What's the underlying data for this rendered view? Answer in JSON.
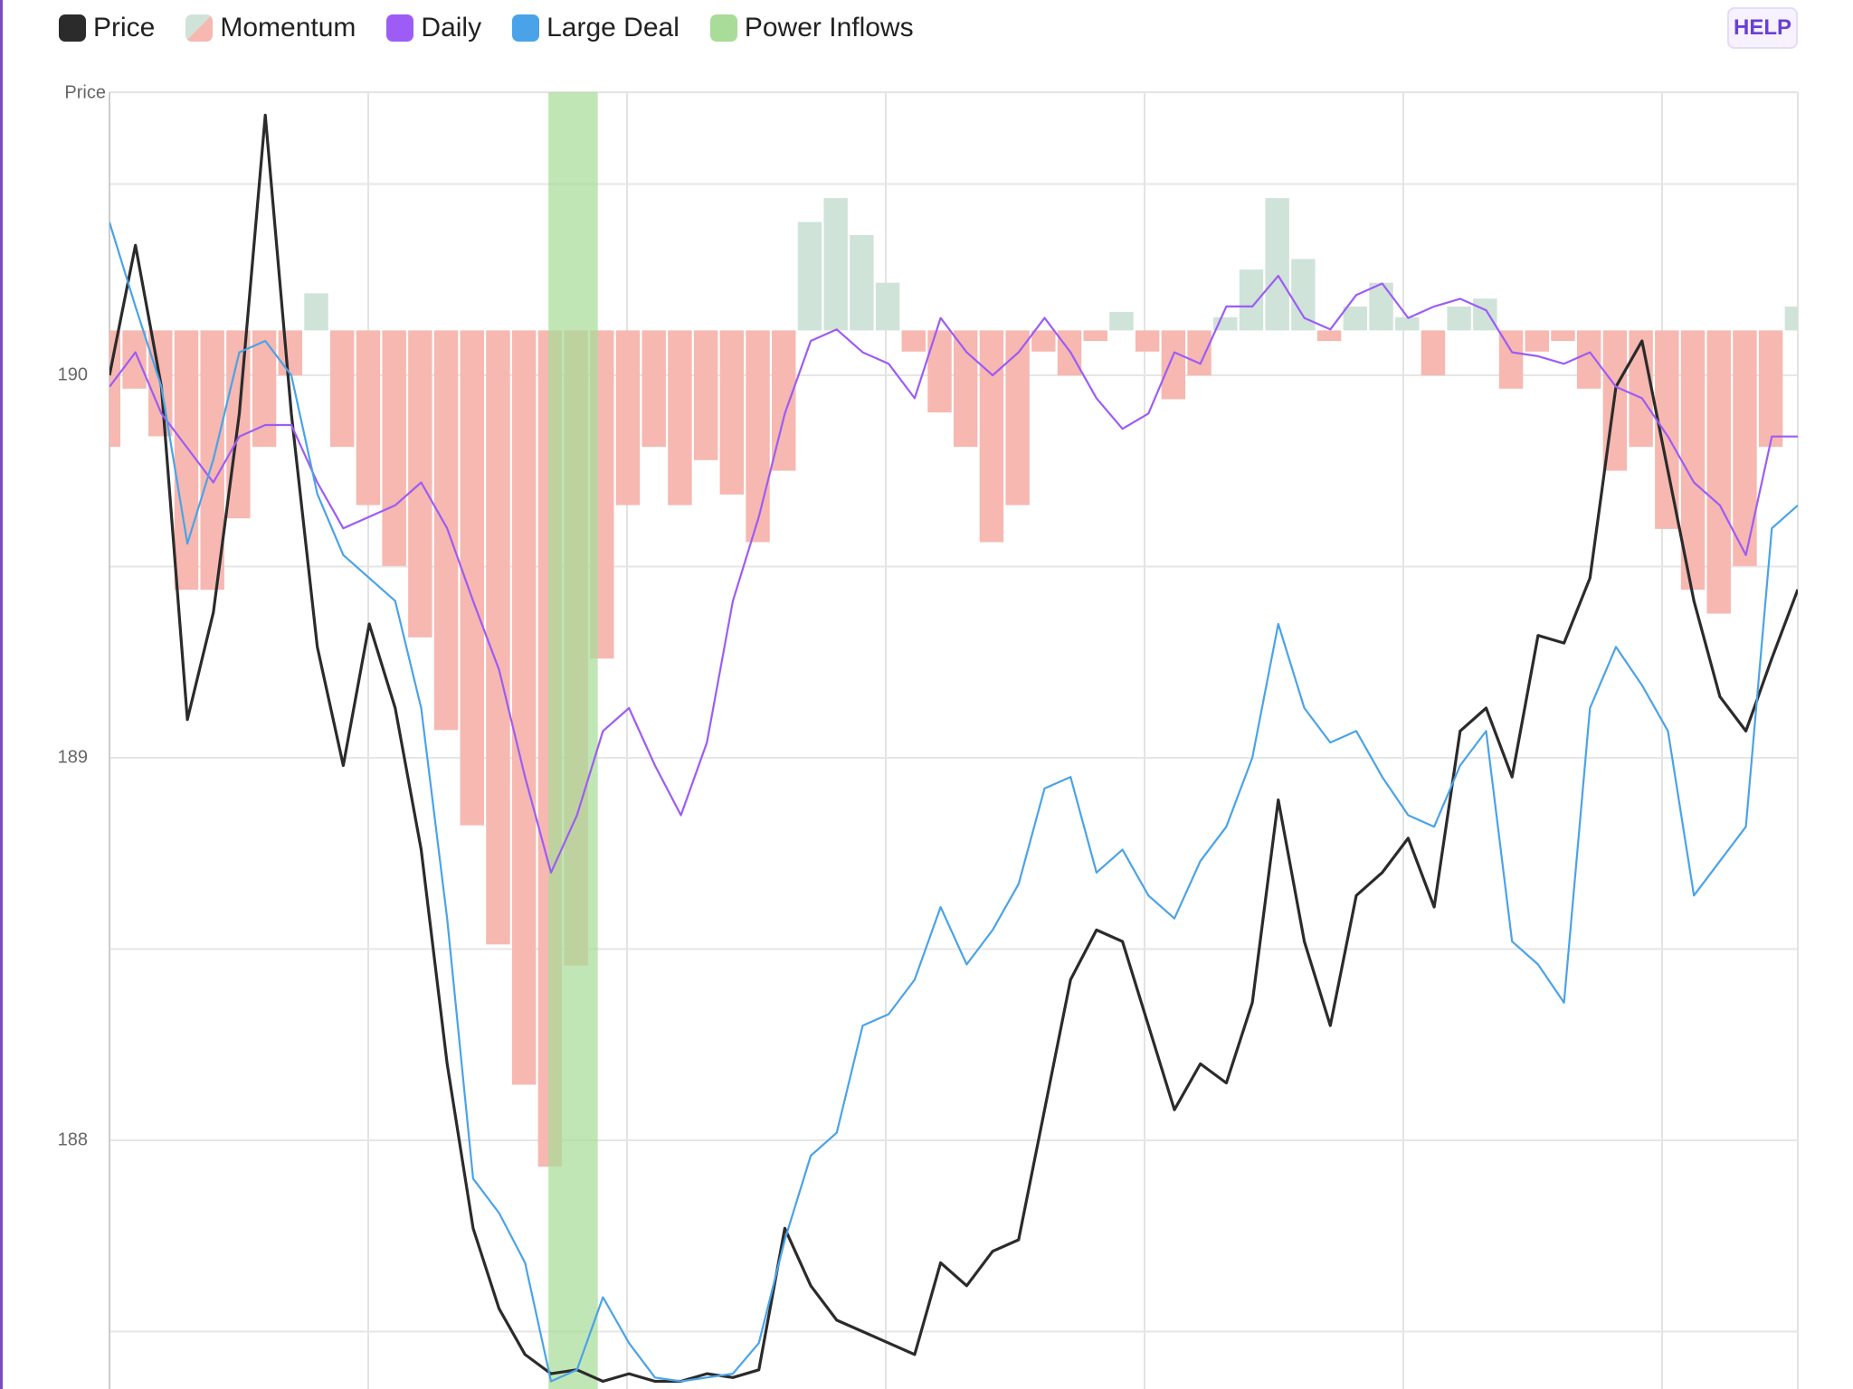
{
  "chart_data": {
    "type": "line",
    "help_button": "HELP",
    "y_label": "Price",
    "x": [
      0,
      1,
      2,
      3,
      4,
      5,
      6,
      7,
      8,
      9,
      10,
      11,
      12,
      13,
      14,
      15,
      16,
      17,
      18,
      19,
      20,
      21,
      22,
      23,
      24,
      25,
      26,
      27,
      28,
      29,
      30,
      31,
      32,
      33,
      34,
      35,
      36,
      37,
      38,
      39,
      40,
      41,
      42,
      43,
      44,
      45,
      46,
      47,
      48,
      49,
      50,
      51,
      52,
      53,
      54,
      55,
      56,
      57,
      58,
      59,
      60,
      61,
      62,
      63,
      64,
      65
    ],
    "xlim": [
      0,
      65
    ],
    "ylim": [
      187.35,
      190.74
    ],
    "yticks": [
      188,
      189,
      190
    ],
    "minor_yticks": [
      187.5,
      188.5,
      189.5,
      190.5
    ],
    "grid": true,
    "y2lim": [
      -4,
      0.9
    ],
    "series": [
      {
        "name": "Price",
        "type": "line",
        "color": "#2b2b2b",
        "values": [
          190.0,
          190.34,
          189.97,
          189.1,
          189.38,
          189.9,
          190.68,
          189.9,
          189.29,
          188.98,
          189.35,
          189.13,
          188.76,
          188.2,
          187.77,
          187.56,
          187.44,
          187.39,
          187.4,
          187.37,
          187.39,
          187.37,
          187.37,
          187.39,
          187.38,
          187.4,
          187.77,
          187.62,
          187.53,
          187.5,
          187.47,
          187.44,
          187.68,
          187.62,
          187.71,
          187.74,
          188.08,
          188.42,
          188.55,
          188.52,
          188.3,
          188.08,
          188.2,
          188.15,
          188.36,
          188.89,
          188.52,
          188.3,
          188.64,
          188.7,
          188.79,
          188.61,
          189.07,
          189.13,
          188.95,
          189.32,
          189.3,
          189.47,
          189.97,
          190.09,
          189.75,
          189.41,
          189.16,
          189.07,
          189.26,
          189.44
        ]
      },
      {
        "name": "Momentum",
        "type": "bar",
        "axis": "y2",
        "color": "#f6b8b0",
        "color_positive": "#cfe3d9",
        "values": [
          -0.44,
          -0.22,
          -0.4,
          -0.98,
          -0.98,
          -0.71,
          -0.44,
          -0.17,
          0.14,
          -0.44,
          -0.66,
          -0.89,
          -1.16,
          -1.51,
          -1.87,
          -2.32,
          -2.85,
          -3.16,
          -2.4,
          -1.24,
          -0.66,
          -0.44,
          -0.66,
          -0.49,
          -0.62,
          -0.8,
          -0.53,
          0.41,
          0.5,
          0.36,
          0.18,
          -0.08,
          -0.31,
          -0.44,
          -0.8,
          -0.66,
          -0.08,
          -0.17,
          -0.04,
          0.07,
          -0.08,
          -0.26,
          -0.17,
          0.05,
          0.23,
          0.5,
          0.27,
          -0.04,
          0.09,
          0.18,
          0.05,
          -0.17,
          0.09,
          0.12,
          -0.22,
          -0.08,
          -0.04,
          -0.22,
          -0.53,
          -0.44,
          -0.75,
          -0.98,
          -1.07,
          -0.89,
          -0.44,
          0.09
        ]
      },
      {
        "name": "Daily",
        "type": "line",
        "color": "#9d5cf5",
        "values": [
          189.97,
          190.06,
          189.9,
          189.81,
          189.72,
          189.84,
          189.87,
          189.87,
          189.72,
          189.6,
          189.63,
          189.66,
          189.72,
          189.6,
          189.41,
          189.23,
          188.95,
          188.7,
          188.85,
          189.07,
          189.13,
          188.98,
          188.85,
          189.04,
          189.41,
          189.63,
          189.9,
          190.09,
          190.12,
          190.06,
          190.03,
          189.94,
          190.15,
          190.06,
          190.0,
          190.06,
          190.15,
          190.06,
          189.94,
          189.86,
          189.9,
          190.06,
          190.03,
          190.18,
          190.18,
          190.26,
          190.15,
          190.12,
          190.21,
          190.24,
          190.15,
          190.18,
          190.2,
          190.17,
          190.06,
          190.05,
          190.03,
          190.06,
          189.97,
          189.94,
          189.84,
          189.72,
          189.66,
          189.53,
          189.84,
          189.84
        ]
      },
      {
        "name": "Large Deal",
        "type": "line",
        "color": "#4aa3e8",
        "values": [
          190.4,
          190.18,
          189.97,
          189.56,
          189.78,
          190.06,
          190.09,
          190.0,
          189.69,
          189.53,
          189.47,
          189.41,
          189.13,
          188.58,
          187.9,
          187.81,
          187.68,
          187.37,
          187.4,
          187.59,
          187.47,
          187.38,
          187.37,
          187.38,
          187.39,
          187.47,
          187.74,
          187.96,
          188.02,
          188.3,
          188.33,
          188.42,
          188.61,
          188.46,
          188.55,
          188.67,
          188.92,
          188.95,
          188.7,
          188.76,
          188.64,
          188.58,
          188.73,
          188.82,
          189.0,
          189.35,
          189.13,
          189.04,
          189.07,
          188.95,
          188.85,
          188.82,
          188.98,
          189.07,
          188.52,
          188.46,
          188.36,
          189.13,
          189.29,
          189.19,
          189.07,
          188.64,
          188.73,
          188.82,
          189.6,
          189.66
        ]
      },
      {
        "name": "Power Inflows",
        "type": "band",
        "color": "#a8dc98",
        "ranges": [
          [
            16.9,
            18.8
          ]
        ]
      }
    ]
  }
}
